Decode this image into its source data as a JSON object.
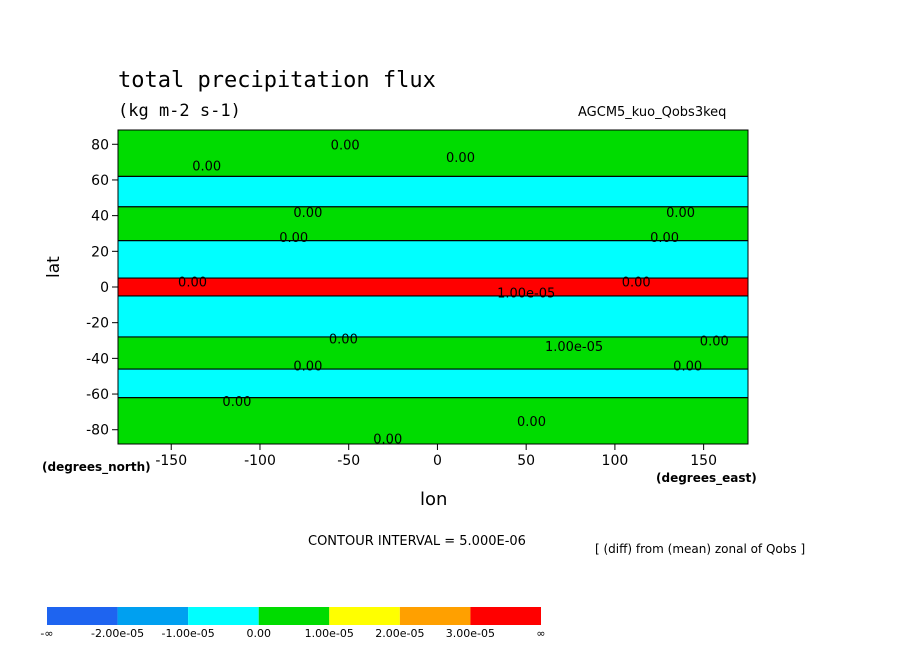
{
  "chart_data": {
    "type": "heatmap",
    "title": "total precipitation flux",
    "units": "(kg m-2 s-1)",
    "dataset": "AGCM5_kuo_Qobs3keq",
    "xlabel": "lon",
    "ylabel": "lat",
    "x_unit_label": "(degrees_east)",
    "y_unit_label": "(degrees_north)",
    "xlim": [
      -180,
      175
    ],
    "ylim": [
      -88,
      88
    ],
    "x_ticks": [
      "-150",
      "-100",
      "-50",
      "0",
      "50",
      "100",
      "150"
    ],
    "x_tick_values": [
      -150,
      -100,
      -50,
      0,
      50,
      100,
      150
    ],
    "y_ticks": [
      "80",
      "60",
      "40",
      "20",
      "0",
      "-20",
      "-40",
      "-60",
      "-80"
    ],
    "y_tick_values": [
      80,
      60,
      40,
      20,
      0,
      -20,
      -40,
      -60,
      -80
    ],
    "contour_interval": "CONTOUR INTERVAL = 5.000E-06",
    "note": "[ (diff) from (mean) zonal of Qobs ]",
    "legend": {
      "colors": [
        "#1e64f0",
        "#00a0f0",
        "#00ffff",
        "#00dc00",
        "#ffff00",
        "#ffa000",
        "#ff0000"
      ],
      "labels": [
        "-∞",
        "-2.00e-05",
        "-1.00e-05",
        "0.00",
        "1.00e-05",
        "2.00e-05",
        "3.00e-05",
        "∞"
      ]
    },
    "zonal_bands": [
      {
        "lat_from": 88,
        "lat_to": 62,
        "level": "0.00"
      },
      {
        "lat_from": 62,
        "lat_to": 45,
        "level": "-1.00e-05"
      },
      {
        "lat_from": 45,
        "lat_to": 26,
        "level": "0.00"
      },
      {
        "lat_from": 26,
        "lat_to": 5,
        "level": "-1.00e-05"
      },
      {
        "lat_from": 5,
        "lat_to": -5,
        "level": "3.00e-05"
      },
      {
        "lat_from": -5,
        "lat_to": -28,
        "level": "-1.00e-05"
      },
      {
        "lat_from": -28,
        "lat_to": -46,
        "level": "0.00"
      },
      {
        "lat_from": -46,
        "lat_to": -62,
        "level": "-1.00e-05"
      },
      {
        "lat_from": -62,
        "lat_to": -88,
        "level": "0.00"
      }
    ],
    "annotations": [
      {
        "text": "0.00",
        "lon": -52,
        "lat": 80
      },
      {
        "text": "0.00",
        "lon": 13,
        "lat": 73
      },
      {
        "text": "0.00",
        "lon": -130,
        "lat": 68
      },
      {
        "text": "0.00",
        "lon": -73,
        "lat": 42
      },
      {
        "text": "0.00",
        "lon": 137,
        "lat": 42
      },
      {
        "text": "0.00",
        "lon": -81,
        "lat": 28
      },
      {
        "text": "0.00",
        "lon": 128,
        "lat": 28
      },
      {
        "text": "0.00",
        "lon": -138,
        "lat": 3
      },
      {
        "text": "0.00",
        "lon": 112,
        "lat": 3
      },
      {
        "text": "1.00e-05",
        "lon": 50,
        "lat": -3
      },
      {
        "text": "0.00",
        "lon": -53,
        "lat": -29
      },
      {
        "text": "1.00e-05",
        "lon": 77,
        "lat": -33
      },
      {
        "text": "0.00",
        "lon": 156,
        "lat": -30
      },
      {
        "text": "0.00",
        "lon": -73,
        "lat": -44
      },
      {
        "text": "0.00",
        "lon": 141,
        "lat": -44
      },
      {
        "text": "0.00",
        "lon": -113,
        "lat": -64
      },
      {
        "text": "0.00",
        "lon": 53,
        "lat": -75
      },
      {
        "text": "0.00",
        "lon": -28,
        "lat": -85
      }
    ]
  }
}
